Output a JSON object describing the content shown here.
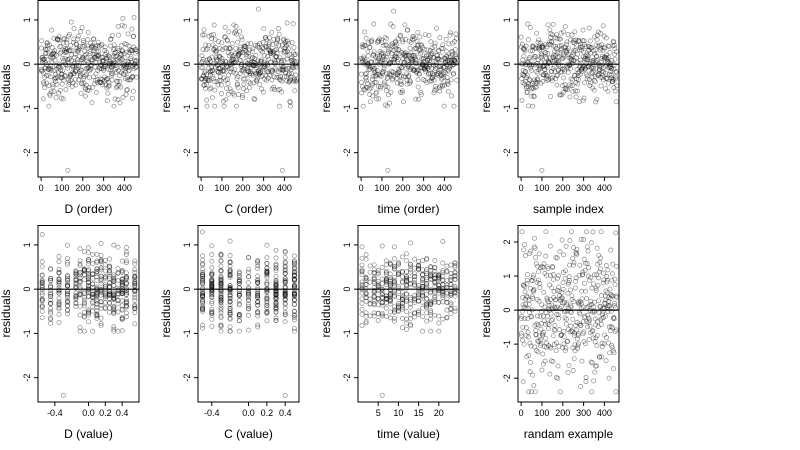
{
  "chart_data": [
    {
      "type": "scatter",
      "xlabel": "D (order)",
      "ylabel": "residuals",
      "xlim": [
        -15,
        470
      ],
      "ylim": [
        -2.55,
        1.45
      ],
      "xticks": [
        0,
        100,
        200,
        300,
        400
      ],
      "xtick_labels": [
        "0",
        "100",
        "200",
        "300",
        "400"
      ],
      "yticks": [
        -2,
        -1,
        0,
        1
      ],
      "ytick_labels": [
        "-2",
        "-1",
        "0",
        "1"
      ],
      "hline": 0,
      "x_kind": "order",
      "y_spread": "resid",
      "outliers": [
        [
          128,
          -2.4
        ]
      ]
    },
    {
      "type": "scatter",
      "xlabel": "C (order)",
      "ylabel": "residuals",
      "xlim": [
        -15,
        470
      ],
      "ylim": [
        -2.55,
        1.45
      ],
      "xticks": [
        0,
        100,
        200,
        300,
        400
      ],
      "xtick_labels": [
        "0",
        "100",
        "200",
        "300",
        "400"
      ],
      "yticks": [
        -2,
        -1,
        0,
        1
      ],
      "ytick_labels": [
        "-2",
        "-1",
        "0",
        "1"
      ],
      "hline": 0,
      "x_kind": "order",
      "y_spread": "resid",
      "outliers": [
        [
          390,
          -2.4
        ]
      ]
    },
    {
      "type": "scatter",
      "xlabel": "time (order)",
      "ylabel": "residuals",
      "xlim": [
        -15,
        470
      ],
      "ylim": [
        -2.55,
        1.45
      ],
      "xticks": [
        0,
        100,
        200,
        300,
        400
      ],
      "xtick_labels": [
        "0",
        "100",
        "200",
        "300",
        "400"
      ],
      "yticks": [
        -2,
        -1,
        0,
        1
      ],
      "ytick_labels": [
        "-2",
        "-1",
        "0",
        "1"
      ],
      "hline": 0,
      "x_kind": "order",
      "y_spread": "resid",
      "outliers": [
        [
          128,
          -2.4
        ]
      ]
    },
    {
      "type": "scatter",
      "xlabel": "sample index",
      "ylabel": "residuals",
      "xlim": [
        -15,
        470
      ],
      "ylim": [
        -2.55,
        1.45
      ],
      "xticks": [
        0,
        100,
        200,
        300,
        400
      ],
      "xtick_labels": [
        "0",
        "100",
        "200",
        "300",
        "400"
      ],
      "yticks": [
        -2,
        -1,
        0,
        1
      ],
      "ytick_labels": [
        "-2",
        "-1",
        "0",
        "1"
      ],
      "hline": 0,
      "x_kind": "order",
      "y_spread": "resid",
      "outliers": [
        [
          100,
          -2.4
        ]
      ]
    },
    {
      "type": "scatter",
      "xlabel": "D (value)",
      "ylabel": "residuals",
      "xlim": [
        -0.6,
        0.6
      ],
      "ylim": [
        -2.55,
        1.45
      ],
      "xticks": [
        -0.4,
        0,
        0.2,
        0.4
      ],
      "xtick_labels": [
        "-0.4",
        "0.0",
        "0.2",
        "0.4"
      ],
      "yticks": [
        -2,
        -1,
        0,
        1
      ],
      "ytick_labels": [
        "-2",
        "-1",
        "0",
        "1"
      ],
      "hline": 0,
      "x_kind": "levels",
      "levels": [
        -0.55,
        -0.45,
        -0.35,
        -0.25,
        -0.15,
        -0.1,
        -0.05,
        0,
        0.05,
        0.1,
        0.15,
        0.2,
        0.25,
        0.3,
        0.35,
        0.4,
        0.45,
        0.55
      ],
      "y_spread": "resid",
      "outliers": [
        [
          -0.3,
          -2.4
        ]
      ]
    },
    {
      "type": "scatter",
      "xlabel": "C (value)",
      "ylabel": "residuals",
      "xlim": [
        -0.55,
        0.55
      ],
      "ylim": [
        -2.55,
        1.45
      ],
      "xticks": [
        -0.4,
        0,
        0.2,
        0.4
      ],
      "xtick_labels": [
        "-0.4",
        "0.0",
        "0.2",
        "0.4"
      ],
      "yticks": [
        -2,
        -1,
        0,
        1
      ],
      "ytick_labels": [
        "-2",
        "-1",
        "0",
        "1"
      ],
      "hline": 0,
      "x_kind": "levels",
      "levels": [
        -0.5,
        -0.4,
        -0.3,
        -0.2,
        -0.1,
        0,
        0.1,
        0.2,
        0.3,
        0.4,
        0.5
      ],
      "y_spread": "resid",
      "outliers": [
        [
          0.4,
          -2.4
        ]
      ]
    },
    {
      "type": "scatter",
      "xlabel": "time (value)",
      "ylabel": "residuals",
      "xlim": [
        0,
        25
      ],
      "ylim": [
        -2.55,
        1.45
      ],
      "xticks": [
        5,
        10,
        15,
        20
      ],
      "xtick_labels": [
        "5",
        "10",
        "15",
        "20"
      ],
      "yticks": [
        -2,
        -1,
        0,
        1
      ],
      "ytick_labels": [
        "-2",
        "-1",
        "0",
        "1"
      ],
      "hline": 0,
      "x_kind": "levels",
      "levels": [
        1,
        2,
        3,
        4,
        5,
        6,
        7,
        8,
        9,
        10,
        11,
        12,
        13,
        14,
        15,
        16,
        17,
        18,
        19,
        20,
        21,
        22,
        23,
        24
      ],
      "y_spread": "resid",
      "outliers": [
        [
          6,
          -2.4
        ]
      ]
    },
    {
      "type": "scatter",
      "xlabel": "randam example",
      "ylabel": "residuals",
      "xlim": [
        -15,
        470
      ],
      "ylim": [
        -2.7,
        2.5
      ],
      "xticks": [
        0,
        100,
        200,
        300,
        400
      ],
      "xtick_labels": [
        "0",
        "100",
        "200",
        "300",
        "400"
      ],
      "yticks": [
        -2,
        -1,
        0,
        1,
        2
      ],
      "ytick_labels": [
        "-2",
        "-1",
        "0",
        "1",
        "2"
      ],
      "hline": 0,
      "x_kind": "order",
      "y_spread": "normal",
      "outliers": []
    }
  ]
}
